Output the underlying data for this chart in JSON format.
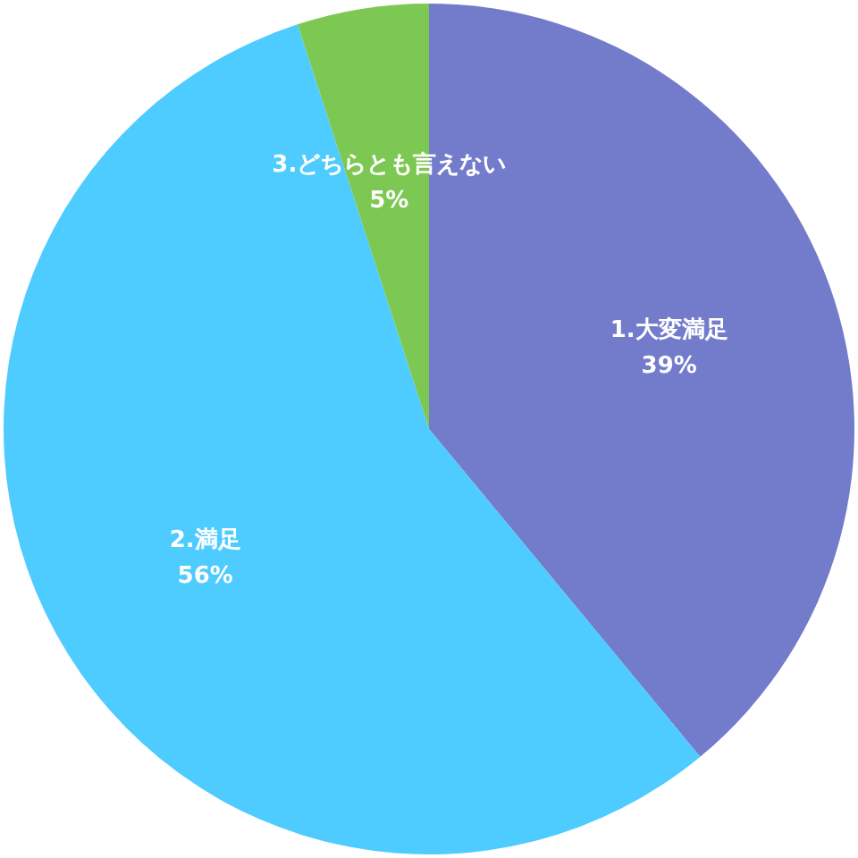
{
  "chart_data": {
    "type": "pie",
    "categories": [
      "1.大変満足",
      "2.満足",
      "3.どちらとも言えない"
    ],
    "values": [
      39,
      56,
      5
    ],
    "colors": [
      "#737bcb",
      "#4ecbff",
      "#7dc852"
    ],
    "value_labels": [
      "39%",
      "56%",
      "5%"
    ]
  }
}
